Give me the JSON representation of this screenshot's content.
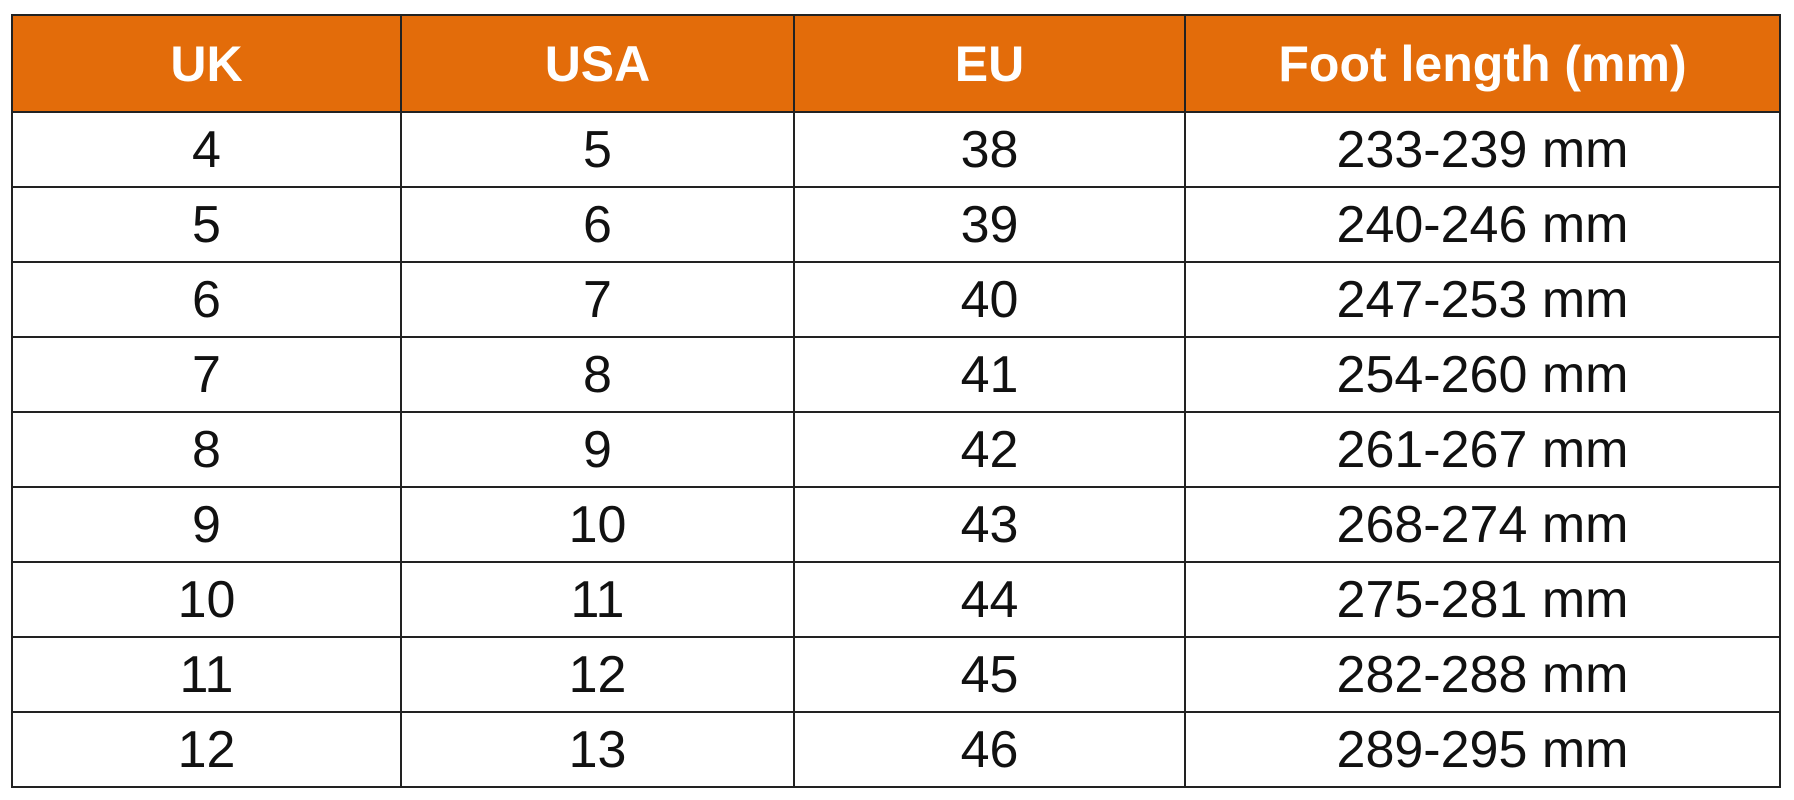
{
  "table": {
    "header": [
      "UK",
      "USA",
      "EU",
      "Foot length (mm)"
    ],
    "rows": [
      [
        4,
        5,
        38,
        "233-239 mm"
      ],
      [
        5,
        6,
        39,
        "240-246 mm"
      ],
      [
        6,
        7,
        40,
        "247-253 mm"
      ],
      [
        7,
        8,
        41,
        "254-260 mm"
      ],
      [
        8,
        9,
        42,
        "261-267 mm"
      ],
      [
        9,
        10,
        43,
        "268-274 mm"
      ],
      [
        10,
        11,
        44,
        "275-281 mm"
      ],
      [
        11,
        12,
        45,
        "282-288 mm"
      ],
      [
        12,
        13,
        46,
        "289-295 mm"
      ]
    ]
  }
}
